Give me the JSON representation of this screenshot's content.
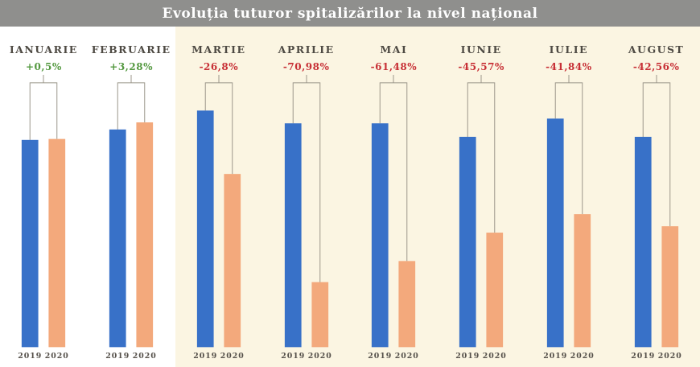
{
  "title": "Evoluția tuturor spitalizărilor la nivel național",
  "colors": {
    "banner_bg": "#8f8f8d",
    "title_text": "#ffffff",
    "plain_bg": "#ffffff",
    "highlight_bg": "#fbf5e2",
    "bar_2019": "#3871c8",
    "bar_2020": "#f3a97c",
    "positive": "#53983f",
    "negative": "#c72f35",
    "bracket_line": "#9b968a",
    "month_text": "#4e4a43",
    "year_text": "#55504a"
  },
  "chart_data": {
    "type": "bar",
    "title": "Evoluția tuturor spitalizărilor la nivel național",
    "categories": [
      "IANUARIE",
      "FEBRUARIE",
      "MARTIE",
      "APRILIE",
      "MAI",
      "IUNIE",
      "IULIE",
      "AUGUST"
    ],
    "series": [
      {
        "name": "2019",
        "values": [
          87.6,
          92.0,
          100.0,
          94.6,
          94.6,
          88.9,
          96.6,
          88.9
        ]
      },
      {
        "name": "2020",
        "values": [
          88.0,
          95.0,
          73.2,
          27.5,
          36.4,
          48.4,
          56.2,
          51.1
        ]
      }
    ],
    "values_note": "relative index, no numeric axis shown in figure; max 2019 bar (Martie) = 100",
    "change_labels": [
      "+0,5%",
      "+3,28%",
      "-26,8%",
      "-70,98%",
      "-61,48%",
      "-45,57%",
      "-41,84%",
      "-42,56%"
    ],
    "change_pct": [
      0.5,
      3.28,
      -26.8,
      -70.98,
      -61.48,
      -45.57,
      -41.84,
      -42.56
    ],
    "change_positive": [
      true,
      true,
      false,
      false,
      false,
      false,
      false,
      false
    ],
    "highlight_start_index": 2,
    "year_labels": [
      "2019",
      "2020"
    ],
    "xlabel": "",
    "ylabel": "",
    "legend_position": "below-bars",
    "grid": false
  }
}
